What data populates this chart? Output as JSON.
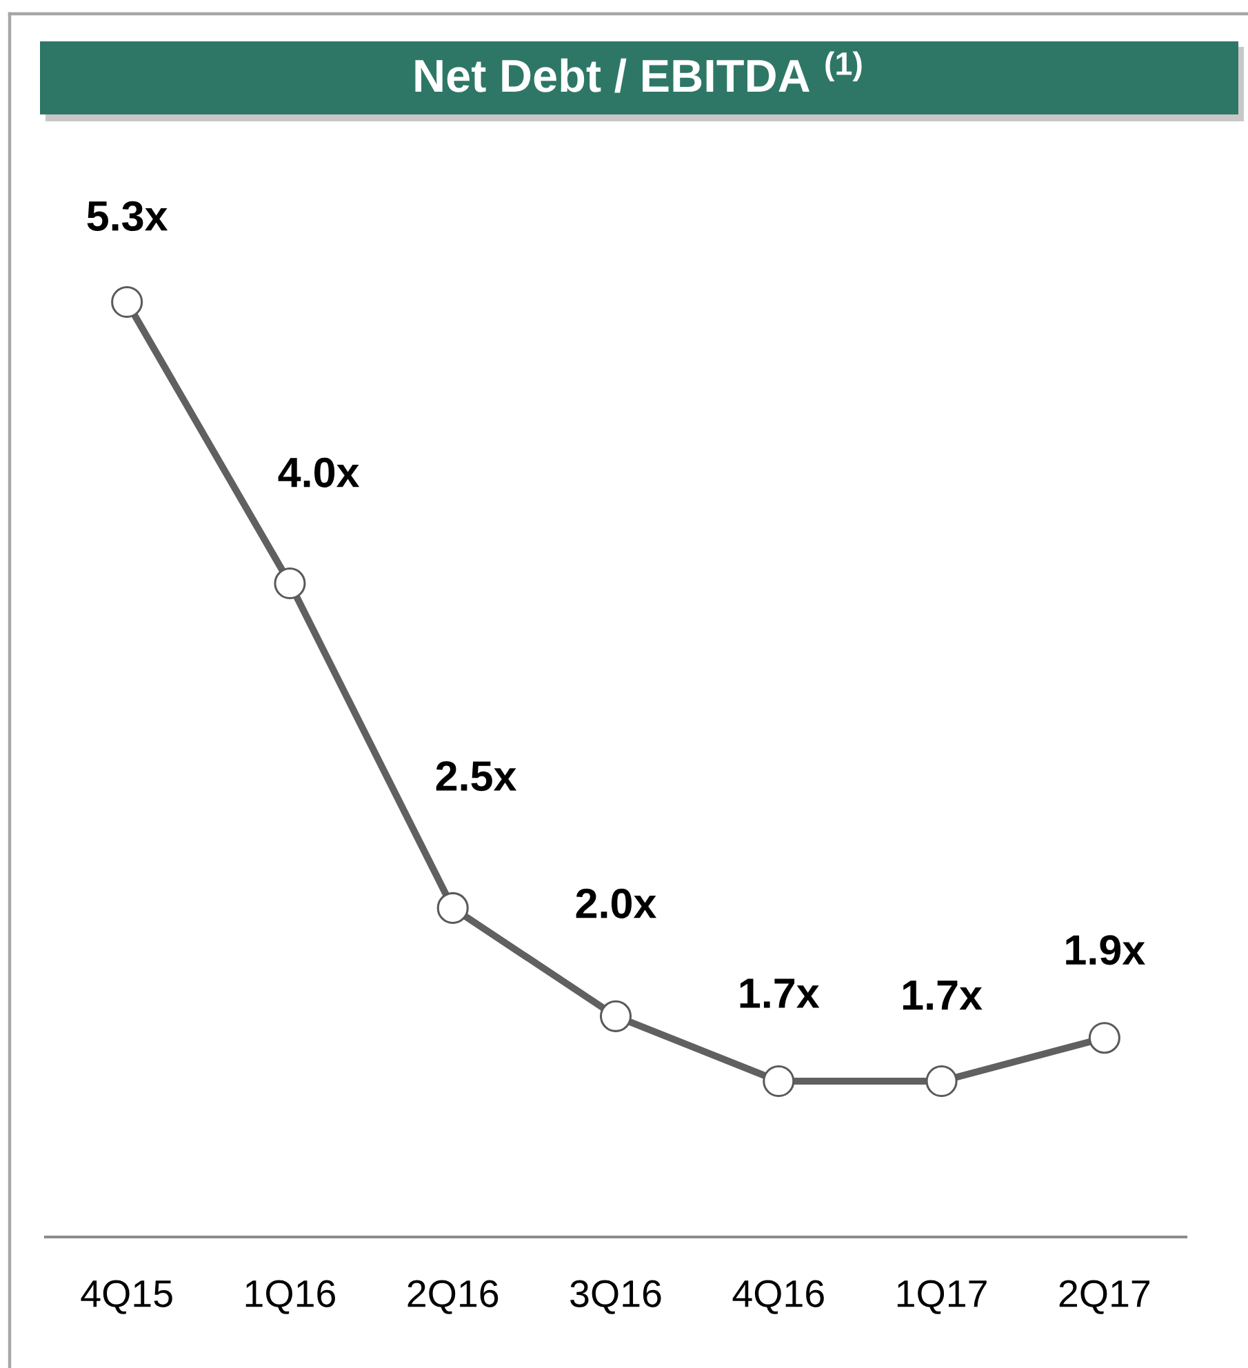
{
  "chart_data": {
    "type": "line",
    "title": "Net Debt / EBITDA $^{(1)}$",
    "categories": [
      "4Q15",
      "1Q16",
      "2Q16",
      "3Q16",
      "4Q16",
      "1Q17",
      "2Q17"
    ],
    "values": [
      5.3,
      4.0,
      2.5,
      2.0,
      1.7,
      1.7,
      1.9
    ],
    "value_labels": [
      "5.3x",
      "4.0x",
      "2.5x",
      "2.0x",
      "1.7x",
      "1.7x",
      "1.9x"
    ],
    "color": "#606060",
    "tick_labels": "x",
    "marker": "circle",
    "line_style": "solid"
  }
}
